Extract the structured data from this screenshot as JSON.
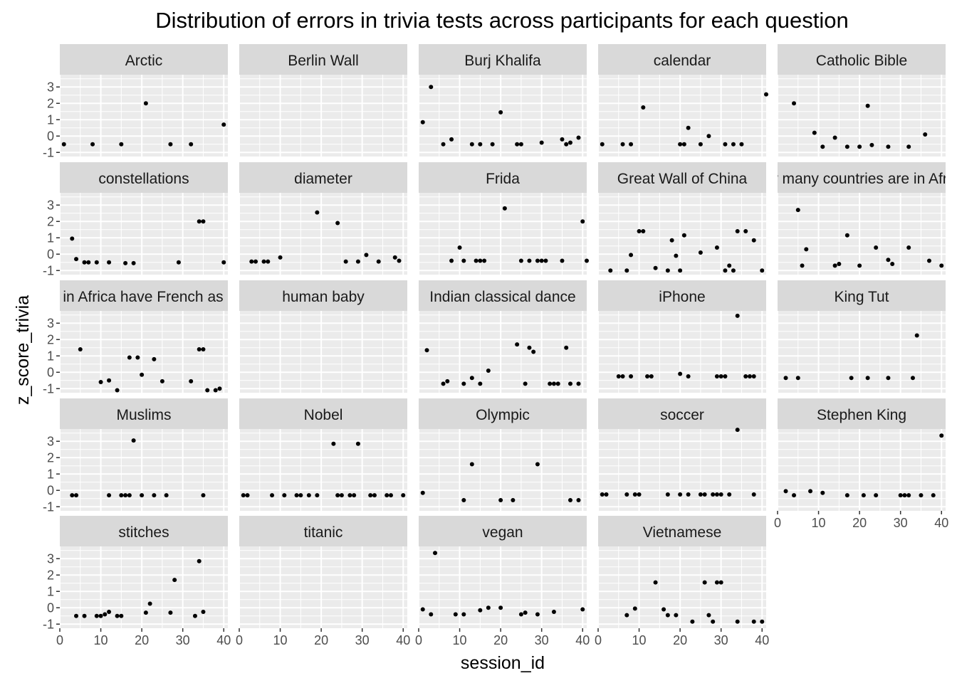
{
  "chart_data": {
    "type": "scatter",
    "title": "Distribution of errors in trivia tests across participants for each question",
    "xlabel": "session_id",
    "ylabel": "z_score_trivia",
    "xlim": [
      0,
      41
    ],
    "ylim": [
      -1.25,
      3.75
    ],
    "x_ticks": [
      0,
      10,
      20,
      30,
      40
    ],
    "y_ticks": [
      -1,
      0,
      1,
      2,
      3
    ],
    "grid": true,
    "ncol": 5,
    "colors": {
      "panel_bg": "#ebebeb",
      "strip_bg": "#d9d9d9",
      "grid": "#ffffff",
      "point": "#000000"
    },
    "facets": [
      {
        "label": "Arctic",
        "points": [
          [
            1,
            -0.5
          ],
          [
            8,
            -0.5
          ],
          [
            15,
            -0.5
          ],
          [
            21,
            2.0
          ],
          [
            27,
            -0.5
          ],
          [
            32,
            -0.5
          ],
          [
            40,
            0.7
          ]
        ]
      },
      {
        "label": "Berlin Wall",
        "points": []
      },
      {
        "label": "Burj Khalifa",
        "points": [
          [
            1,
            0.85
          ],
          [
            3,
            3.0
          ],
          [
            6,
            -0.5
          ],
          [
            8,
            -0.2
          ],
          [
            13,
            -0.5
          ],
          [
            15,
            -0.5
          ],
          [
            18,
            -0.5
          ],
          [
            20,
            1.45
          ],
          [
            24,
            -0.5
          ],
          [
            25,
            -0.5
          ],
          [
            30,
            -0.4
          ],
          [
            35,
            -0.2
          ],
          [
            36,
            -0.5
          ],
          [
            37,
            -0.4
          ],
          [
            39,
            -0.1
          ]
        ]
      },
      {
        "label": "calendar",
        "points": [
          [
            1,
            -0.5
          ],
          [
            6,
            -0.5
          ],
          [
            8,
            -0.5
          ],
          [
            11,
            1.75
          ],
          [
            20,
            -0.5
          ],
          [
            21,
            -0.5
          ],
          [
            22,
            0.5
          ],
          [
            25,
            -0.5
          ],
          [
            27,
            0.0
          ],
          [
            31,
            -0.5
          ],
          [
            33,
            -0.5
          ],
          [
            35,
            -0.5
          ],
          [
            41,
            2.55
          ]
        ]
      },
      {
        "label": "Catholic Bible",
        "points": [
          [
            4,
            2.0
          ],
          [
            9,
            0.2
          ],
          [
            11,
            -0.65
          ],
          [
            14,
            -0.1
          ],
          [
            17,
            -0.65
          ],
          [
            20,
            -0.65
          ],
          [
            22,
            1.85
          ],
          [
            23,
            -0.55
          ],
          [
            27,
            -0.65
          ],
          [
            32,
            -0.65
          ],
          [
            36,
            0.1
          ]
        ]
      },
      {
        "label": "constellations",
        "points": [
          [
            3,
            0.95
          ],
          [
            4,
            -0.3
          ],
          [
            6,
            -0.5
          ],
          [
            7,
            -0.5
          ],
          [
            9,
            -0.5
          ],
          [
            12,
            -0.5
          ],
          [
            16,
            -0.55
          ],
          [
            18,
            -0.55
          ],
          [
            29,
            -0.5
          ],
          [
            34,
            2.0
          ],
          [
            35,
            2.0
          ],
          [
            40,
            -0.5
          ]
        ]
      },
      {
        "label": "diameter",
        "points": [
          [
            3,
            -0.45
          ],
          [
            4,
            -0.45
          ],
          [
            6,
            -0.45
          ],
          [
            7,
            -0.45
          ],
          [
            10,
            -0.2
          ],
          [
            19,
            2.55
          ],
          [
            24,
            1.9
          ],
          [
            26,
            -0.45
          ],
          [
            29,
            -0.45
          ],
          [
            31,
            -0.05
          ],
          [
            34,
            -0.45
          ],
          [
            38,
            -0.2
          ],
          [
            39,
            -0.4
          ]
        ]
      },
      {
        "label": "Frida",
        "points": [
          [
            8,
            -0.4
          ],
          [
            10,
            0.4
          ],
          [
            11,
            -0.4
          ],
          [
            14,
            -0.4
          ],
          [
            15,
            -0.4
          ],
          [
            16,
            -0.4
          ],
          [
            21,
            2.8
          ],
          [
            25,
            -0.4
          ],
          [
            27,
            -0.4
          ],
          [
            29,
            -0.4
          ],
          [
            30,
            -0.4
          ],
          [
            31,
            -0.4
          ],
          [
            35,
            -0.4
          ],
          [
            40,
            2.0
          ],
          [
            41,
            -0.4
          ]
        ]
      },
      {
        "label": "Great Wall of China",
        "points": [
          [
            3,
            -1.0
          ],
          [
            7,
            -1.0
          ],
          [
            8,
            -0.05
          ],
          [
            10,
            1.4
          ],
          [
            11,
            1.4
          ],
          [
            14,
            -0.85
          ],
          [
            17,
            -1.0
          ],
          [
            18,
            0.85
          ],
          [
            19,
            -0.1
          ],
          [
            20,
            -1.0
          ],
          [
            21,
            1.15
          ],
          [
            25,
            0.1
          ],
          [
            29,
            0.4
          ],
          [
            31,
            -1.0
          ],
          [
            32,
            -0.7
          ],
          [
            33,
            -1.0
          ],
          [
            34,
            1.4
          ],
          [
            36,
            1.4
          ],
          [
            38,
            0.85
          ],
          [
            40,
            -1.0
          ]
        ]
      },
      {
        "label": "How many countries are in Africa?",
        "points": [
          [
            5,
            2.7
          ],
          [
            6,
            -0.7
          ],
          [
            7,
            0.3
          ],
          [
            14,
            -0.7
          ],
          [
            15,
            -0.6
          ],
          [
            17,
            1.15
          ],
          [
            20,
            -0.7
          ],
          [
            24,
            0.4
          ],
          [
            27,
            -0.35
          ],
          [
            28,
            -0.6
          ],
          [
            32,
            0.4
          ],
          [
            37,
            -0.4
          ],
          [
            40,
            -0.7
          ]
        ]
      },
      {
        "label": "How many countries in Africa have French as an official language?",
        "points": [
          [
            5,
            1.4
          ],
          [
            10,
            -0.6
          ],
          [
            12,
            -0.5
          ],
          [
            14,
            -1.1
          ],
          [
            17,
            0.9
          ],
          [
            19,
            0.9
          ],
          [
            20,
            -0.15
          ],
          [
            23,
            0.8
          ],
          [
            25,
            -0.55
          ],
          [
            32,
            -0.55
          ],
          [
            34,
            1.4
          ],
          [
            35,
            1.4
          ],
          [
            36,
            -1.1
          ],
          [
            38,
            -1.1
          ],
          [
            39,
            -1.0
          ]
        ]
      },
      {
        "label": "human baby",
        "points": []
      },
      {
        "label": "Indian classical dance",
        "points": [
          [
            2,
            1.35
          ],
          [
            6,
            -0.7
          ],
          [
            7,
            -0.55
          ],
          [
            11,
            -0.7
          ],
          [
            13,
            -0.35
          ],
          [
            15,
            -0.7
          ],
          [
            17,
            0.1
          ],
          [
            24,
            1.7
          ],
          [
            26,
            -0.7
          ],
          [
            27,
            1.5
          ],
          [
            28,
            1.25
          ],
          [
            32,
            -0.7
          ],
          [
            33,
            -0.7
          ],
          [
            34,
            -0.7
          ],
          [
            36,
            1.5
          ],
          [
            37,
            -0.7
          ],
          [
            39,
            -0.7
          ]
        ]
      },
      {
        "label": "iPhone",
        "points": [
          [
            5,
            -0.25
          ],
          [
            6,
            -0.25
          ],
          [
            8,
            -0.25
          ],
          [
            12,
            -0.25
          ],
          [
            13,
            -0.25
          ],
          [
            20,
            -0.1
          ],
          [
            22,
            -0.25
          ],
          [
            29,
            -0.25
          ],
          [
            30,
            -0.25
          ],
          [
            31,
            -0.25
          ],
          [
            34,
            3.45
          ],
          [
            36,
            -0.25
          ],
          [
            37,
            -0.25
          ],
          [
            38,
            -0.25
          ]
        ]
      },
      {
        "label": "King Tut",
        "points": [
          [
            2,
            -0.35
          ],
          [
            5,
            -0.35
          ],
          [
            18,
            -0.35
          ],
          [
            22,
            -0.35
          ],
          [
            27,
            -0.35
          ],
          [
            33,
            -0.35
          ],
          [
            34,
            2.25
          ]
        ]
      },
      {
        "label": "Muslims",
        "points": [
          [
            3,
            -0.3
          ],
          [
            4,
            -0.3
          ],
          [
            12,
            -0.3
          ],
          [
            15,
            -0.3
          ],
          [
            16,
            -0.3
          ],
          [
            17,
            -0.3
          ],
          [
            18,
            3.05
          ],
          [
            20,
            -0.3
          ],
          [
            23,
            -0.3
          ],
          [
            26,
            -0.3
          ],
          [
            35,
            -0.3
          ]
        ]
      },
      {
        "label": "Nobel",
        "points": [
          [
            1,
            -0.3
          ],
          [
            2,
            -0.3
          ],
          [
            8,
            -0.3
          ],
          [
            11,
            -0.3
          ],
          [
            14,
            -0.3
          ],
          [
            15,
            -0.3
          ],
          [
            17,
            -0.3
          ],
          [
            19,
            -0.3
          ],
          [
            23,
            2.85
          ],
          [
            24,
            -0.3
          ],
          [
            25,
            -0.3
          ],
          [
            27,
            -0.3
          ],
          [
            28,
            -0.3
          ],
          [
            29,
            2.85
          ],
          [
            32,
            -0.3
          ],
          [
            33,
            -0.3
          ],
          [
            36,
            -0.3
          ],
          [
            37,
            -0.3
          ],
          [
            40,
            -0.3
          ]
        ]
      },
      {
        "label": "Olympic",
        "points": [
          [
            1,
            -0.15
          ],
          [
            11,
            -0.6
          ],
          [
            13,
            1.6
          ],
          [
            20,
            -0.6
          ],
          [
            23,
            -0.6
          ],
          [
            29,
            1.6
          ],
          [
            37,
            -0.6
          ],
          [
            39,
            -0.6
          ]
        ]
      },
      {
        "label": "soccer",
        "points": [
          [
            1,
            -0.25
          ],
          [
            2,
            -0.25
          ],
          [
            7,
            -0.25
          ],
          [
            9,
            -0.25
          ],
          [
            10,
            -0.25
          ],
          [
            17,
            -0.25
          ],
          [
            20,
            -0.25
          ],
          [
            22,
            -0.25
          ],
          [
            25,
            -0.25
          ],
          [
            26,
            -0.25
          ],
          [
            28,
            -0.25
          ],
          [
            29,
            -0.25
          ],
          [
            30,
            -0.25
          ],
          [
            32,
            -0.25
          ],
          [
            34,
            3.7
          ],
          [
            38,
            -0.25
          ]
        ]
      },
      {
        "label": "Stephen King",
        "points": [
          [
            2,
            -0.05
          ],
          [
            4,
            -0.3
          ],
          [
            8,
            -0.05
          ],
          [
            11,
            -0.15
          ],
          [
            17,
            -0.3
          ],
          [
            21,
            -0.3
          ],
          [
            24,
            -0.3
          ],
          [
            30,
            -0.3
          ],
          [
            31,
            -0.3
          ],
          [
            32,
            -0.3
          ],
          [
            35,
            -0.3
          ],
          [
            38,
            -0.3
          ],
          [
            40,
            3.35
          ]
        ]
      },
      {
        "label": "stitches",
        "points": [
          [
            4,
            -0.5
          ],
          [
            6,
            -0.5
          ],
          [
            9,
            -0.5
          ],
          [
            10,
            -0.5
          ],
          [
            11,
            -0.4
          ],
          [
            12,
            -0.25
          ],
          [
            14,
            -0.5
          ],
          [
            15,
            -0.5
          ],
          [
            21,
            -0.3
          ],
          [
            22,
            0.25
          ],
          [
            27,
            -0.3
          ],
          [
            28,
            1.7
          ],
          [
            33,
            -0.5
          ],
          [
            34,
            2.85
          ],
          [
            35,
            -0.25
          ]
        ]
      },
      {
        "label": "titanic",
        "points": []
      },
      {
        "label": "vegan",
        "points": [
          [
            1,
            -0.1
          ],
          [
            3,
            -0.4
          ],
          [
            4,
            3.35
          ],
          [
            9,
            -0.4
          ],
          [
            11,
            -0.4
          ],
          [
            15,
            -0.15
          ],
          [
            17,
            0.0
          ],
          [
            20,
            0.0
          ],
          [
            25,
            -0.4
          ],
          [
            26,
            -0.3
          ],
          [
            29,
            -0.4
          ],
          [
            33,
            -0.25
          ],
          [
            40,
            -0.1
          ]
        ]
      },
      {
        "label": "Vietnamese",
        "points": [
          [
            7,
            -0.45
          ],
          [
            9,
            -0.05
          ],
          [
            14,
            1.55
          ],
          [
            16,
            -0.1
          ],
          [
            17,
            -0.45
          ],
          [
            19,
            -0.45
          ],
          [
            23,
            -0.85
          ],
          [
            26,
            1.55
          ],
          [
            27,
            -0.45
          ],
          [
            28,
            -0.85
          ],
          [
            29,
            1.55
          ],
          [
            30,
            1.55
          ],
          [
            34,
            -0.85
          ],
          [
            38,
            -0.85
          ],
          [
            40,
            -0.85
          ]
        ]
      }
    ]
  }
}
